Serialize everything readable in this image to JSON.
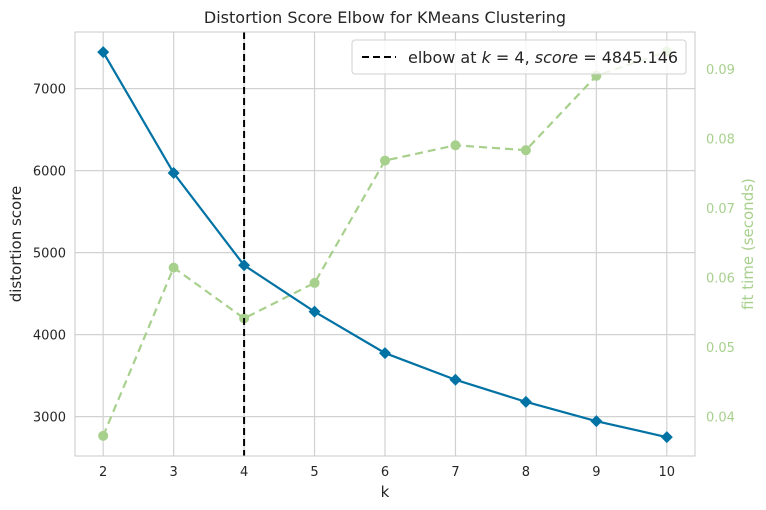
{
  "chart_data": {
    "type": "line",
    "title": "Distortion Score Elbow for KMeans Clustering",
    "xlabel": "k",
    "ylabel": "distortion score",
    "y2label": "fit time (seconds)",
    "x": [
      2,
      3,
      4,
      5,
      6,
      7,
      8,
      9,
      10
    ],
    "xlim": [
      1.6,
      10.4
    ],
    "ylim": [
      2520,
      7690
    ],
    "y2lim": [
      0.0343,
      0.0953
    ],
    "x_ticks": [
      "2",
      "3",
      "4",
      "5",
      "6",
      "7",
      "8",
      "9",
      "10"
    ],
    "y_ticks": [
      "3000",
      "4000",
      "5000",
      "6000",
      "7000"
    ],
    "y2_ticks": [
      "0.04",
      "0.05",
      "0.06",
      "0.07",
      "0.08",
      "0.09"
    ],
    "grid": true,
    "legend_position": "top-right",
    "series": [
      {
        "axis": "left",
        "color": "#0072a3",
        "marker": "diamond",
        "values": [
          7445,
          5970,
          4845.146,
          4280,
          3775,
          3450,
          3180,
          2945,
          2750
        ]
      },
      {
        "axis": "right",
        "color": "#a8d08d",
        "marker": "circle",
        "line_style": "dashed",
        "values": [
          0.0372,
          0.0614,
          0.0541,
          0.0592,
          0.0768,
          0.079,
          0.0783,
          0.089,
          0.0925
        ]
      }
    ],
    "elbow": {
      "k": 4,
      "score": 4845.146,
      "color": "#000000",
      "legend_prefix": "elbow at ",
      "legend_k": "k",
      "legend_eq1": " = 4, ",
      "legend_score": "score",
      "legend_eq2": " = 4845.146"
    }
  }
}
